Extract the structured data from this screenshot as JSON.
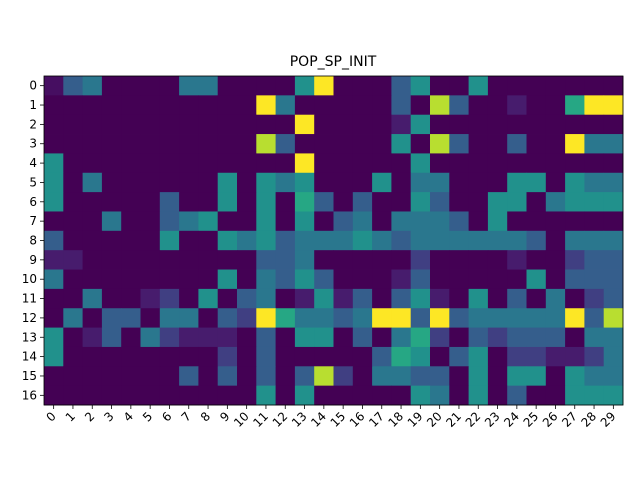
{
  "chart_data": {
    "type": "heatmap",
    "title": "POP_SP_INIT",
    "xlabel": "",
    "ylabel": "",
    "colormap": "viridis",
    "vmin": 0,
    "vmax": 10,
    "x_ticks": [
      "0",
      "1",
      "2",
      "3",
      "4",
      "5",
      "6",
      "7",
      "8",
      "9",
      "10",
      "11",
      "12",
      "13",
      "14",
      "15",
      "16",
      "17",
      "18",
      "19",
      "20",
      "21",
      "22",
      "23",
      "24",
      "25",
      "26",
      "27",
      "28",
      "29"
    ],
    "y_ticks": [
      "0",
      "1",
      "2",
      "3",
      "4",
      "5",
      "6",
      "7",
      "8",
      "9",
      "10",
      "11",
      "12",
      "13",
      "14",
      "15",
      "16"
    ],
    "values": [
      [
        0.5,
        3,
        4,
        0,
        0,
        0,
        0,
        4,
        4,
        0,
        0,
        0,
        0,
        5,
        10,
        0,
        0,
        0,
        3,
        5,
        0,
        0,
        5,
        0,
        0,
        0,
        0,
        0,
        0,
        0
      ],
      [
        0,
        0,
        0,
        0,
        0,
        0,
        0,
        0,
        0,
        0,
        0,
        10,
        4,
        0,
        0,
        0,
        0,
        0,
        3,
        0,
        9,
        3,
        0,
        0,
        1,
        0,
        0,
        6,
        10,
        10
      ],
      [
        0,
        0,
        0,
        0,
        0,
        0,
        0,
        0,
        0,
        0,
        0,
        0,
        0,
        10,
        0,
        0,
        0,
        0,
        1,
        5,
        0,
        0,
        0,
        0,
        0,
        0,
        0,
        0,
        0,
        0
      ],
      [
        0,
        0,
        0,
        0,
        0,
        0,
        0,
        0,
        0,
        0,
        0,
        9,
        3,
        0,
        0,
        0,
        0,
        0,
        5,
        0,
        9,
        3,
        0,
        0,
        3,
        0,
        0,
        10,
        4,
        4
      ],
      [
        5,
        0,
        0,
        0,
        0,
        0,
        0,
        0,
        0,
        0,
        0,
        0,
        0,
        10,
        0,
        0,
        0,
        0,
        0,
        5,
        0,
        0,
        0,
        0,
        0,
        0,
        0,
        0,
        0,
        0
      ],
      [
        5,
        0,
        4,
        0,
        0,
        0,
        0,
        0,
        0,
        5,
        0,
        5,
        4,
        5,
        0,
        0,
        0,
        5,
        0,
        4,
        4,
        0,
        0,
        0,
        5,
        5,
        0,
        5,
        4,
        4
      ],
      [
        5,
        0,
        0,
        0,
        0,
        0,
        3,
        0,
        0,
        5,
        0,
        5,
        0,
        6,
        3,
        0,
        3,
        0,
        0,
        5,
        3,
        0,
        0,
        5,
        5,
        0,
        4,
        5,
        5,
        5
      ],
      [
        0,
        0,
        0,
        4,
        0,
        0,
        3,
        4,
        5,
        0,
        0,
        5,
        0,
        5,
        0,
        3,
        4,
        0,
        4,
        4,
        4,
        3,
        0,
        5,
        0,
        0,
        0,
        0,
        0,
        0
      ],
      [
        3,
        0,
        0,
        0,
        0,
        0,
        5,
        0,
        0,
        5,
        4,
        5,
        3,
        4,
        4,
        4,
        5,
        4,
        3,
        4,
        4,
        4,
        4,
        4,
        4,
        3,
        0,
        4,
        4,
        4
      ],
      [
        1,
        1,
        0,
        0,
        0,
        0,
        0,
        0,
        0,
        0,
        0,
        3,
        3,
        4,
        0,
        0,
        0,
        0,
        0,
        2,
        0,
        0,
        0,
        0,
        1,
        0,
        0,
        2,
        3,
        3
      ],
      [
        4,
        0,
        0,
        0,
        0,
        0,
        0,
        0,
        0,
        5,
        0,
        4,
        3,
        5,
        3,
        0,
        0,
        0,
        1,
        3,
        0,
        0,
        0,
        0,
        0,
        5,
        0,
        3,
        3,
        3
      ],
      [
        0,
        0,
        4,
        0,
        0,
        1,
        2,
        0,
        5,
        0,
        3,
        4,
        0,
        1,
        5,
        1,
        3,
        0,
        3,
        5,
        1,
        0,
        5,
        0,
        3,
        0,
        4,
        0,
        2,
        3
      ],
      [
        0,
        4,
        0,
        3,
        3,
        0,
        4,
        4,
        0,
        3,
        2,
        10,
        6,
        4,
        4,
        3,
        4,
        10,
        10,
        3,
        10,
        3,
        4,
        4,
        4,
        4,
        4,
        10,
        3,
        9
      ],
      [
        5,
        0,
        1,
        3,
        0,
        4,
        2,
        1,
        1,
        1,
        0,
        3,
        0,
        5,
        5,
        0,
        3,
        0,
        4,
        6,
        2,
        0,
        3,
        2,
        3,
        3,
        3,
        0,
        4,
        4
      ],
      [
        5,
        0,
        0,
        0,
        0,
        0,
        0,
        0,
        0,
        2,
        0,
        3,
        0,
        0,
        0,
        0,
        0,
        3,
        6,
        5,
        0,
        3,
        5,
        0,
        2,
        2,
        1,
        1,
        2,
        4
      ],
      [
        0,
        0,
        0,
        0,
        0,
        0,
        0,
        3,
        0,
        3,
        0,
        3,
        0,
        3,
        9,
        2,
        0,
        4,
        4,
        3,
        3,
        0,
        5,
        0,
        5,
        5,
        0,
        5,
        4,
        4
      ],
      [
        0,
        0,
        0,
        0,
        0,
        0,
        0,
        0,
        0,
        0,
        0,
        5,
        0,
        5,
        0,
        0,
        0,
        0,
        0,
        5,
        4,
        0,
        5,
        0,
        3,
        0,
        0,
        5,
        5,
        5
      ]
    ]
  }
}
